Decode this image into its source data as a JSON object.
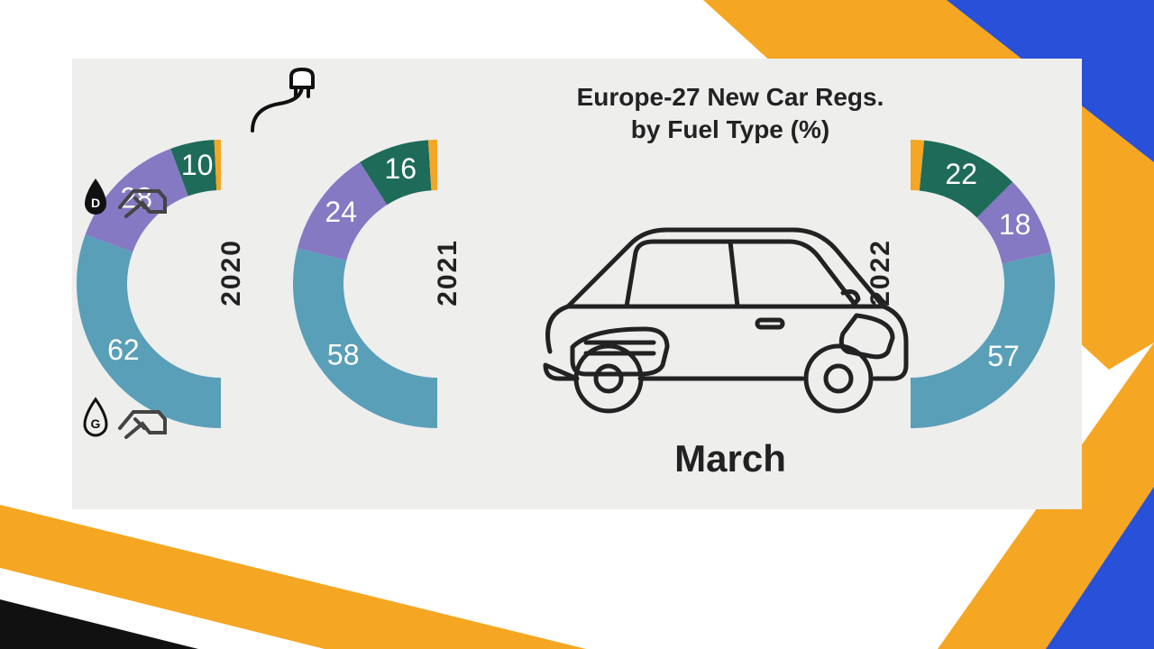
{
  "background": {
    "colors": {
      "orange": "#f5a623",
      "blue": "#2850d8",
      "white": "#ffffff",
      "black": "#111111"
    }
  },
  "infographic": {
    "bg_color": "#eeeeed",
    "title_line1": "Europe-27 New Car Regs.",
    "title_line2": "by Fuel Type (%)",
    "title_fontsize": 28,
    "title_color": "#222222",
    "month": "March",
    "month_fontsize": 42,
    "years": [
      {
        "year": "2020",
        "segments": [
          {
            "label": "62",
            "value": 62,
            "color": "#5a9fb8"
          },
          {
            "label": "28",
            "value": 28,
            "color": "#8479c2"
          },
          {
            "label": "10",
            "value": 10,
            "color": "#1e6b5a"
          }
        ],
        "orange_tip": {
          "value": 1.5,
          "color": "#f5a623"
        }
      },
      {
        "year": "2021",
        "segments": [
          {
            "label": "58",
            "value": 58,
            "color": "#5a9fb8"
          },
          {
            "label": "24",
            "value": 24,
            "color": "#8479c2"
          },
          {
            "label": "16",
            "value": 16,
            "color": "#1e6b5a"
          }
        ],
        "orange_tip": {
          "value": 2,
          "color": "#f5a623"
        }
      },
      {
        "year": "2022",
        "segments": [
          {
            "label": "57",
            "value": 57,
            "color": "#5a9fb8"
          },
          {
            "label": "18",
            "value": 18,
            "color": "#8479c2"
          },
          {
            "label": "22",
            "value": 22,
            "color": "#1e6b5a"
          }
        ],
        "orange_tip": {
          "value": 3,
          "color": "#f5a623"
        }
      }
    ],
    "arc": {
      "stroke_width": 56,
      "outer_radius": 160,
      "start_angle_deg": 270,
      "end_angle_deg": 90,
      "direction_2022": "mirrored"
    },
    "icons": {
      "diesel_label": "D",
      "gas_label": "G",
      "stroke_color": "#222222"
    }
  }
}
